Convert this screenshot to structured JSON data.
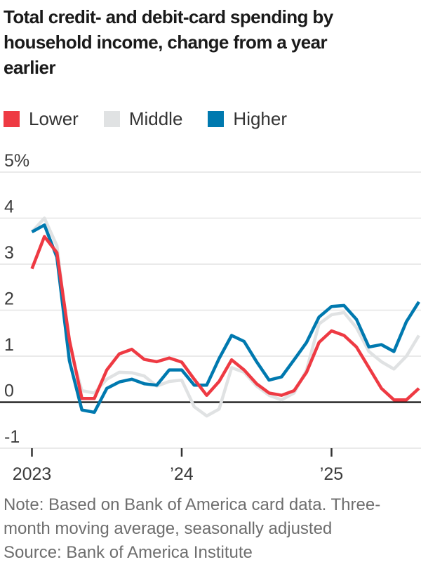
{
  "header": {
    "title_lines": [
      "Total credit- and debit-card spending by",
      "household income, change from a year",
      "earlier"
    ]
  },
  "legend": {
    "items": [
      {
        "label": "Lower",
        "color": "#ee3a43"
      },
      {
        "label": "Middle",
        "color": "#e0e2e3"
      },
      {
        "label": "Higher",
        "color": "#0079af"
      }
    ]
  },
  "chart_data": {
    "type": "line",
    "title": "Total credit- and debit-card spending by household income, change from a year earlier",
    "x_unit": "month",
    "x_start": "2023-01",
    "x_end": "2025-08",
    "ylabel_format": "percent",
    "ylim": [
      -1,
      5
    ],
    "grid": true,
    "legend_position": "top",
    "colors": {
      "grid": "#e4e4e4",
      "zero_line": "#111111",
      "axis_tick": "#333333",
      "tick_label": "#3c3c3c",
      "note_text": "#6e6e6e",
      "title_text": "#1a1a1a"
    },
    "yticks": [
      {
        "value": 5,
        "label": "5%"
      },
      {
        "value": 4,
        "label": "4"
      },
      {
        "value": 3,
        "label": "3"
      },
      {
        "value": 2,
        "label": "2"
      },
      {
        "value": 1,
        "label": "1"
      },
      {
        "value": 0,
        "label": "0"
      },
      {
        "value": -1,
        "label": "-1"
      }
    ],
    "xticks": [
      {
        "label": "2023",
        "month_index": 0
      },
      {
        "label": "’24",
        "month_index": 12
      },
      {
        "label": "’25",
        "month_index": 24
      }
    ],
    "series": [
      {
        "name": "Middle",
        "color": "#e0e2e3",
        "values": [
          3.7,
          4.0,
          3.4,
          1.2,
          0.25,
          0.2,
          0.5,
          0.65,
          0.64,
          0.57,
          0.35,
          0.45,
          0.48,
          -0.1,
          -0.3,
          -0.15,
          0.75,
          0.65,
          0.35,
          0.15,
          0.05,
          0.2,
          0.7,
          1.7,
          1.9,
          1.95,
          1.62,
          1.1,
          0.88,
          0.72,
          1.0,
          1.45
        ]
      },
      {
        "name": "Higher",
        "color": "#0079af",
        "values": [
          3.7,
          3.85,
          3.15,
          0.9,
          -0.17,
          -0.22,
          0.3,
          0.44,
          0.5,
          0.4,
          0.37,
          0.7,
          0.7,
          0.37,
          0.37,
          0.95,
          1.45,
          1.32,
          0.88,
          0.48,
          0.55,
          0.92,
          1.3,
          1.85,
          2.08,
          2.1,
          1.8,
          1.2,
          1.25,
          1.1,
          1.75,
          2.18
        ]
      },
      {
        "name": "Lower",
        "color": "#ee3a43",
        "values": [
          2.9,
          3.6,
          3.25,
          1.35,
          0.08,
          0.08,
          0.7,
          1.05,
          1.15,
          0.93,
          0.88,
          0.96,
          0.87,
          0.5,
          0.15,
          0.45,
          0.92,
          0.7,
          0.4,
          0.2,
          0.15,
          0.25,
          0.65,
          1.3,
          1.55,
          1.45,
          1.2,
          0.75,
          0.3,
          0.05,
          0.05,
          0.3
        ]
      }
    ]
  },
  "notes": {
    "note_lines": [
      "Note: Based on Bank of America card data. Three-",
      "month moving average, seasonally adjusted"
    ],
    "source": "Source: Bank of America Institute"
  }
}
